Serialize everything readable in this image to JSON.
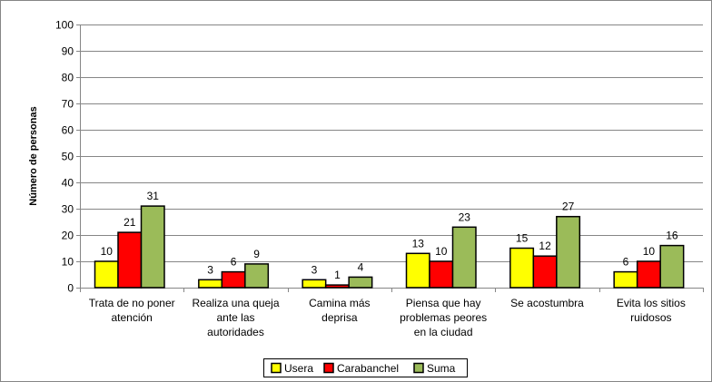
{
  "chart_data": {
    "type": "bar",
    "title": "",
    "xlabel": "",
    "ylabel": "Número de personas",
    "ylim": [
      0,
      100
    ],
    "yticks": [
      0,
      10,
      20,
      30,
      40,
      50,
      60,
      70,
      80,
      90,
      100
    ],
    "grid": true,
    "legend_position": "bottom",
    "categories": [
      [
        "Trata de no poner",
        "atención"
      ],
      [
        "Realiza una queja",
        "ante las",
        "autoridades"
      ],
      [
        "Camina más",
        "deprisa"
      ],
      [
        "Piensa que hay",
        "problemas peores",
        "en la ciudad"
      ],
      [
        "Se acostumbra"
      ],
      [
        "Evita los sitios",
        "ruidosos"
      ]
    ],
    "series": [
      {
        "name": "Usera",
        "color": "#ffff00",
        "values": [
          10,
          3,
          3,
          13,
          15,
          6
        ]
      },
      {
        "name": "Carabanchel",
        "color": "#ff0000",
        "values": [
          21,
          6,
          1,
          10,
          12,
          10
        ]
      },
      {
        "name": "Suma",
        "color": "#9bbb59",
        "values": [
          31,
          9,
          4,
          23,
          27,
          16
        ]
      }
    ]
  }
}
